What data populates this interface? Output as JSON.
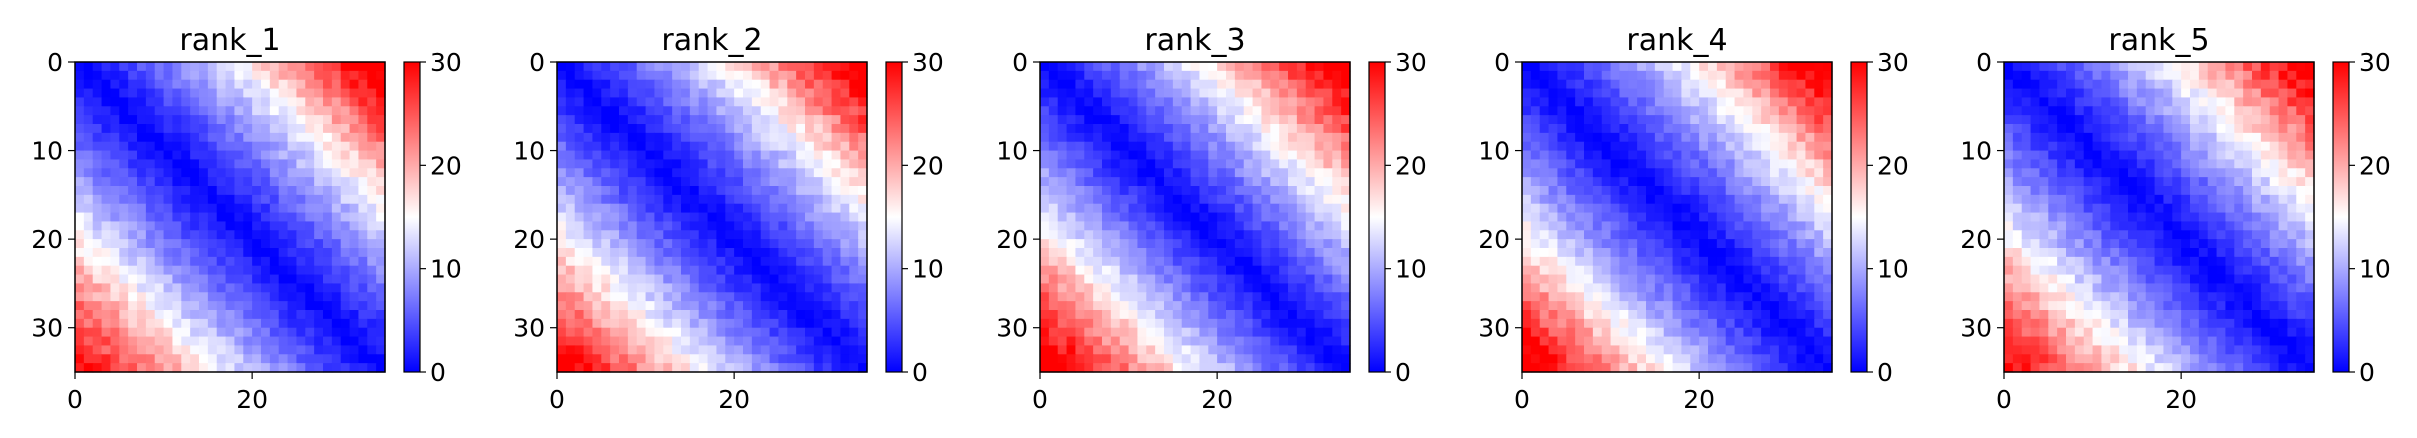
{
  "chart_data": [
    {
      "type": "heatmap",
      "title": "rank_1",
      "grid_size": 35,
      "x_ticks": [
        0,
        20
      ],
      "y_ticks": [
        0,
        10,
        20,
        30
      ],
      "colorbar": {
        "range": [
          0,
          30
        ],
        "ticks": [
          0,
          10,
          20,
          30
        ],
        "colormap": "bwr"
      },
      "z_model": {
        "diag": 0,
        "near_diag_slope": 0.55,
        "corner_max": 30,
        "corner_top_right": 29,
        "corner_bottom_left": 26
      },
      "grid": false
    },
    {
      "type": "heatmap",
      "title": "rank_2",
      "grid_size": 35,
      "x_ticks": [
        0,
        20
      ],
      "y_ticks": [
        0,
        10,
        20,
        30
      ],
      "colorbar": {
        "range": [
          0,
          30
        ],
        "ticks": [
          0,
          10,
          20,
          30
        ],
        "colormap": "bwr"
      },
      "z_model": {
        "diag": 0,
        "near_diag_slope": 0.55,
        "corner_max": 30,
        "corner_top_right": 29,
        "corner_bottom_left": 27
      },
      "grid": false
    },
    {
      "type": "heatmap",
      "title": "rank_3",
      "grid_size": 35,
      "x_ticks": [
        0,
        20
      ],
      "y_ticks": [
        0,
        10,
        20,
        30
      ],
      "colorbar": {
        "range": [
          0,
          30
        ],
        "ticks": [
          0,
          10,
          20,
          30
        ],
        "colormap": "bwr"
      },
      "z_model": {
        "diag": 0,
        "near_diag_slope": 0.6,
        "corner_max": 30,
        "corner_top_right": 28,
        "corner_bottom_left": 29
      },
      "grid": false
    },
    {
      "type": "heatmap",
      "title": "rank_4",
      "grid_size": 35,
      "x_ticks": [
        0,
        20
      ],
      "y_ticks": [
        0,
        10,
        20,
        30
      ],
      "colorbar": {
        "range": [
          0,
          30
        ],
        "ticks": [
          0,
          10,
          20,
          30
        ],
        "colormap": "bwr"
      },
      "z_model": {
        "diag": 0,
        "near_diag_slope": 0.55,
        "corner_max": 30,
        "corner_top_right": 29,
        "corner_bottom_left": 29
      },
      "grid": false
    },
    {
      "type": "heatmap",
      "title": "rank_5",
      "grid_size": 35,
      "x_ticks": [
        0,
        20
      ],
      "y_ticks": [
        0,
        10,
        20,
        30
      ],
      "colorbar": {
        "range": [
          0,
          30
        ],
        "ticks": [
          0,
          10,
          20,
          30
        ],
        "colormap": "bwr"
      },
      "z_model": {
        "diag": 0,
        "near_diag_slope": 0.55,
        "corner_max": 30,
        "corner_top_right": 28,
        "corner_bottom_left": 26
      },
      "grid": false
    }
  ]
}
